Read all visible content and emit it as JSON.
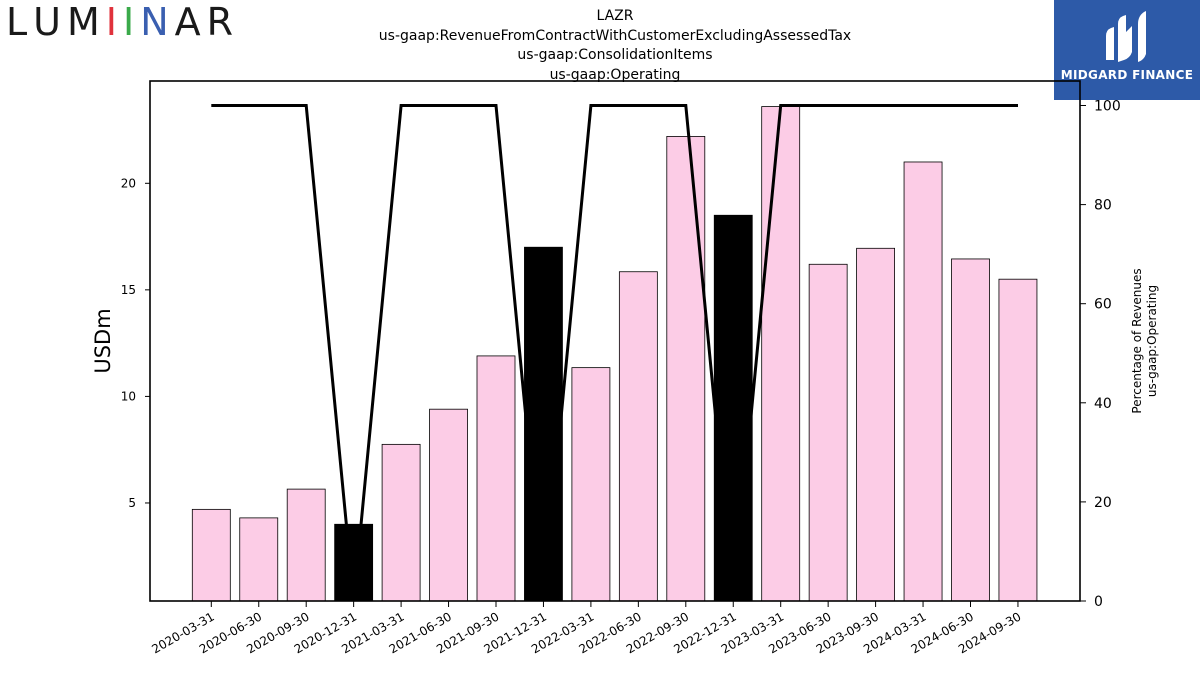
{
  "brand": {
    "letters": [
      {
        "char": "L",
        "color": "#1a1a1a"
      },
      {
        "char": "U",
        "color": "#1a1a1a"
      },
      {
        "char": "M",
        "color": "#1a1a1a"
      },
      {
        "char": "I",
        "color": "#e0323c"
      },
      {
        "char": "I",
        "color": "#3aaa4a"
      },
      {
        "char": "N",
        "color": "#3a5fb0"
      },
      {
        "char": "A",
        "color": "#1a1a1a"
      },
      {
        "char": "R",
        "color": "#1a1a1a"
      }
    ]
  },
  "partner": {
    "name": "MIDGARD FINANCE",
    "bg_color": "#2d5aa8",
    "icon": "midgard-logo-icon"
  },
  "chart_data": {
    "type": "bar",
    "title_lines": [
      "LAZR",
      "us-gaap:RevenueFromContractWithCustomerExcludingAssessedTax",
      "us-gaap:ConsolidationItems",
      "us-gaap:Operating"
    ],
    "ylabel": "USDm",
    "y2label_lines": [
      "Percentage of Revenues",
      "us-gaap:Operating"
    ],
    "ylim": [
      0.4,
      24.8
    ],
    "y_ticks": [
      5,
      10,
      15,
      20
    ],
    "y2lim": [
      0,
      100
    ],
    "y2_ticks": [
      0,
      20,
      40,
      60,
      80,
      100
    ],
    "categories": [
      "2020-03-31",
      "2020-06-30",
      "2020-09-30",
      "2020-12-31",
      "2021-03-31",
      "2021-06-30",
      "2021-09-30",
      "2021-12-31",
      "2022-03-31",
      "2022-06-30",
      "2022-09-30",
      "2022-12-31",
      "2023-03-31",
      "2023-06-30",
      "2023-09-30",
      "2024-03-31",
      "2024-06-30",
      "2024-09-30"
    ],
    "values": [
      4.7,
      4.3,
      5.65,
      4.0,
      7.75,
      9.4,
      11.9,
      17.0,
      11.35,
      15.85,
      22.2,
      18.5,
      23.6,
      16.2,
      16.95,
      21.0,
      16.45,
      15.5
    ],
    "bar_colors": [
      "#fccce6",
      "#fccce6",
      "#fccce6",
      "#000000",
      "#fccce6",
      "#fccce6",
      "#fccce6",
      "#000000",
      "#fccce6",
      "#fccce6",
      "#fccce6",
      "#000000",
      "#fccce6",
      "#fccce6",
      "#fccce6",
      "#fccce6",
      "#fccce6",
      "#fccce6"
    ],
    "percentage_line": [
      100,
      100,
      100,
      0,
      100,
      100,
      100,
      0,
      100,
      100,
      100,
      0,
      100,
      100,
      100,
      100,
      100,
      100
    ],
    "grid": false
  }
}
